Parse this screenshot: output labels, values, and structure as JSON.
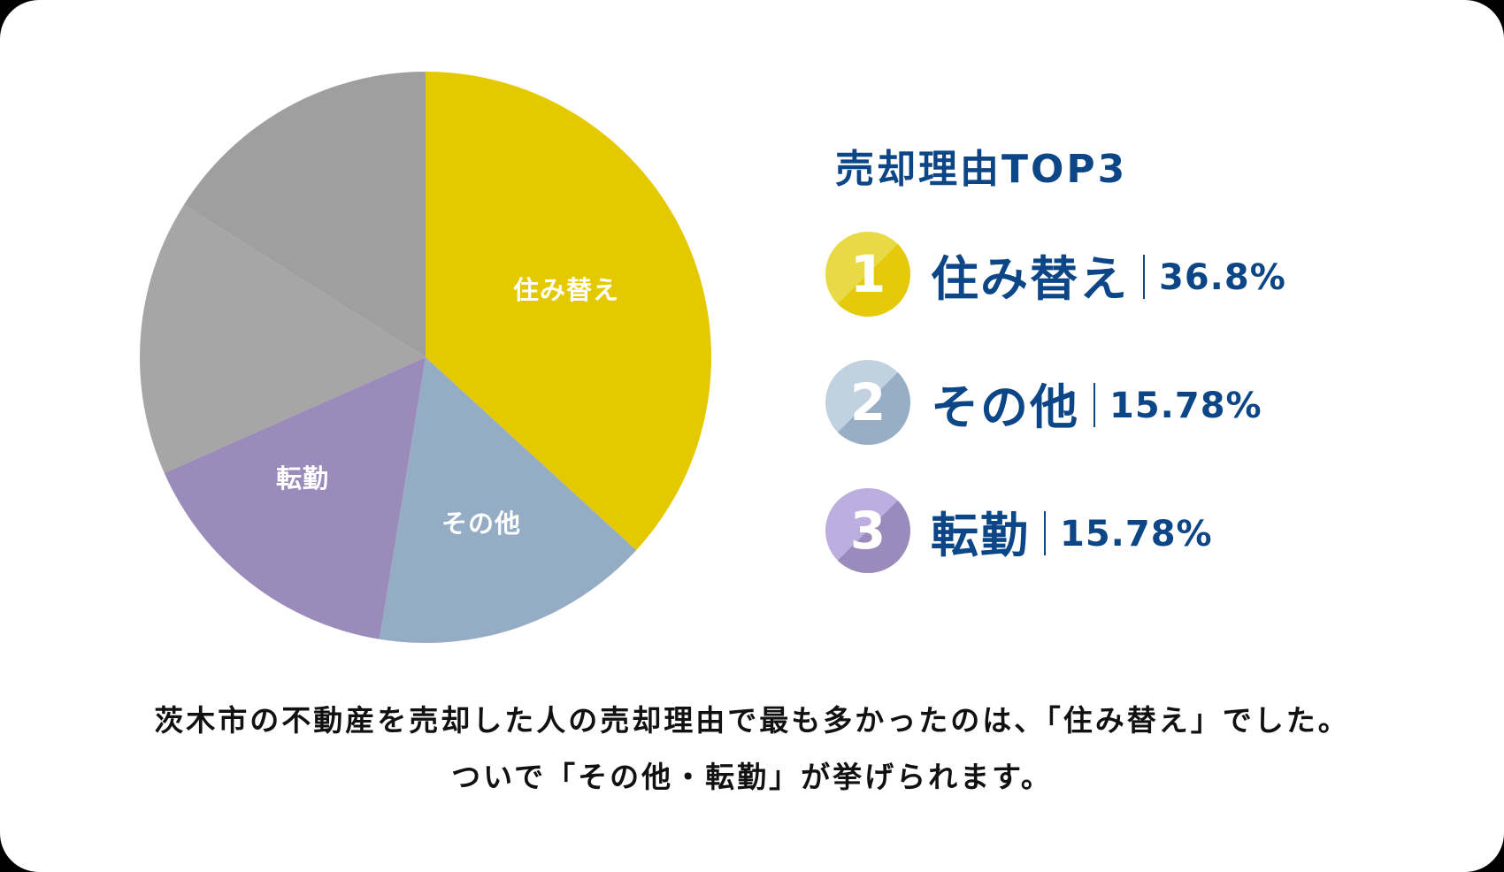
{
  "chart_data": {
    "type": "pie",
    "title": "売却理由TOP3",
    "start_angle": "12 o'clock, clockwise",
    "categories": [
      "住み替え",
      "その他",
      "転勤",
      "",
      ""
    ],
    "values": [
      36.8,
      15.78,
      15.78,
      15.6,
      16.04
    ],
    "colors": [
      "#e5c900",
      "#95adc4",
      "#9a8bbb",
      "#a6a6a6",
      "#9f9f9f"
    ],
    "slice_labels": [
      "住み替え",
      "その他",
      "転勤"
    ],
    "unit": "%"
  },
  "pie": {
    "labels": {
      "slice1": "住み替え",
      "slice2": "その他",
      "slice3": "転勤"
    }
  },
  "ranking": {
    "title": "売却理由TOP3",
    "items": [
      {
        "rank": "1",
        "label": "住み替え",
        "percent": "36.8%",
        "badge_light": "#e8da45",
        "badge_dark": "#e5c90a"
      },
      {
        "rank": "2",
        "label": "その他",
        "percent": "15.78%",
        "badge_light": "#c2d1e0",
        "badge_dark": "#97aec5"
      },
      {
        "rank": "3",
        "label": "転勤",
        "percent": "15.78%",
        "badge_light": "#bdaee0",
        "badge_dark": "#9b8bbd"
      }
    ]
  },
  "caption": {
    "line1": "茨木市の不動産を売却した人の売却理由で最も多かったのは、「住み替え」でした。",
    "line2": "ついで「その他・転勤」が挙げられます。"
  },
  "colors": {
    "text_primary": "#0d4687",
    "caption_text": "#111111",
    "background": "#ffffff"
  }
}
